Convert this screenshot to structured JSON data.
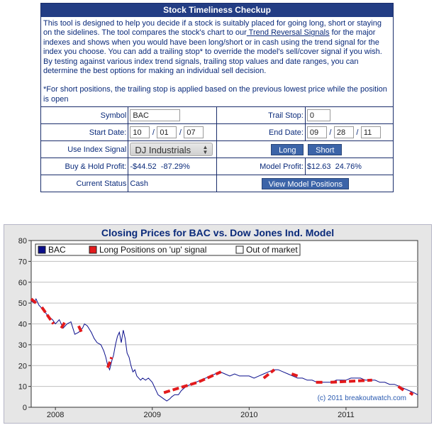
{
  "tool": {
    "title": "Stock Timeliness Checkup",
    "description_before_link": "This tool is designed to help you decide if a stock is suitably placed for going long, short or staying on the sidelines. The tool compares the stock's chart to our",
    "link_text": " Trend Reversal Signals",
    "description_after_link": "for the major indexes and shows when you would have been long/short or in cash using the trend signal for the index you choose. You can add a trailing stop* to override the model's sell/cover signal if you wish. By testing against various index trend signals, trailing stop values and date ranges, you can determine the best options for making an individual sell decision.",
    "footnote": "*For short positions, the trailing stop is applied based on the previous lowest price while the position is open"
  },
  "form": {
    "symbol_label": "Symbol",
    "symbol_value": "BAC",
    "trail_stop_label": "Trail Stop:",
    "trail_stop_value": "0",
    "start_date_label": "Start Date:",
    "start_month": "10",
    "start_day": "01",
    "start_year": "07",
    "end_date_label": "End Date:",
    "end_month": "09",
    "end_day": "28",
    "end_year": "11",
    "date_sep": "/",
    "index_label": "Use Index Signal",
    "index_value": "DJ Industrials",
    "long_button": "Long",
    "short_button": "Short",
    "bh_label": "Buy & Hold Profit:",
    "bh_value": "-$44.52",
    "bh_pct": "-87.29%",
    "model_label": "Model Profit:",
    "model_value": "$12.63",
    "model_pct": "24.76%",
    "status_label": "Current Status",
    "status_value": "Cash",
    "view_button": "View Model Positions"
  },
  "colors": {
    "header_bg": "#233d84",
    "text": "#0a2a7a",
    "price_line": "#0b0f8c",
    "long_line": "#e31a1c",
    "button_bg": "#3c64a8"
  },
  "chart_data": {
    "type": "line",
    "title": "Closing Prices for BAC vs. Dow Jones Ind. Model",
    "credit": "(c) 2011 breakoutwatch.com",
    "ylim": [
      0,
      80
    ],
    "yticks": [
      0,
      10,
      20,
      30,
      40,
      50,
      60,
      70,
      80
    ],
    "xlim": [
      2007.75,
      2011.74
    ],
    "xticks": [
      {
        "label": "2008",
        "x": 2008.0
      },
      {
        "label": "2009",
        "x": 2009.0
      },
      {
        "label": "2010",
        "x": 2010.0
      },
      {
        "label": "2011",
        "x": 2011.0
      }
    ],
    "grid": "horizontal",
    "legend": [
      {
        "label": "BAC",
        "swatch": "price"
      },
      {
        "label": "Long Positions on 'up' signal",
        "swatch": "long"
      },
      {
        "label": "Out of market",
        "swatch": "out"
      }
    ],
    "series": [
      {
        "name": "BAC",
        "x": [
          2007.75,
          2007.78,
          2007.8,
          2007.83,
          2007.87,
          2007.92,
          2007.97,
          2008.0,
          2008.04,
          2008.08,
          2008.12,
          2008.16,
          2008.2,
          2008.24,
          2008.28,
          2008.3,
          2008.33,
          2008.37,
          2008.4,
          2008.43,
          2008.47,
          2008.5,
          2008.52,
          2008.54,
          2008.56,
          2008.58,
          2008.6,
          2008.62,
          2008.64,
          2008.66,
          2008.68,
          2008.7,
          2008.72,
          2008.74,
          2008.76,
          2008.78,
          2008.8,
          2008.82,
          2008.84,
          2008.86,
          2008.88,
          2008.9,
          2008.93,
          2008.96,
          2009.0,
          2009.03,
          2009.06,
          2009.09,
          2009.12,
          2009.15,
          2009.18,
          2009.2,
          2009.23,
          2009.27,
          2009.3,
          2009.35,
          2009.4,
          2009.45,
          2009.5,
          2009.55,
          2009.6,
          2009.65,
          2009.7,
          2009.75,
          2009.8,
          2009.85,
          2009.9,
          2009.95,
          2010.0,
          2010.05,
          2010.1,
          2010.15,
          2010.2,
          2010.25,
          2010.3,
          2010.35,
          2010.4,
          2010.45,
          2010.5,
          2010.55,
          2010.6,
          2010.65,
          2010.7,
          2010.75,
          2010.8,
          2010.85,
          2010.9,
          2010.95,
          2011.0,
          2011.05,
          2011.1,
          2011.15,
          2011.2,
          2011.25,
          2011.3,
          2011.35,
          2011.4,
          2011.45,
          2011.5,
          2011.55,
          2011.6,
          2011.65,
          2011.7,
          2011.74
        ],
        "y": [
          51,
          50,
          52,
          49,
          47,
          44,
          42,
          40,
          42,
          38,
          40,
          41,
          35,
          36,
          38,
          40,
          39,
          36,
          33,
          31,
          30,
          27,
          24,
          20,
          18,
          22,
          25,
          30,
          34,
          36,
          31,
          37,
          33,
          26,
          24,
          20,
          17,
          18,
          15,
          14,
          13,
          14,
          13,
          14,
          12,
          9,
          6,
          5,
          4,
          3,
          4,
          5,
          6,
          6,
          8,
          10,
          11,
          12,
          13,
          14,
          15,
          16,
          17,
          16,
          15,
          16,
          15,
          15,
          15,
          14,
          15,
          16,
          17,
          18,
          18,
          17,
          16,
          15,
          14,
          14,
          13,
          13,
          12,
          12,
          12,
          12,
          13,
          13,
          13,
          14,
          14,
          14,
          13,
          13,
          13,
          12,
          12,
          11,
          11,
          10,
          9,
          8,
          7,
          6
        ]
      },
      {
        "name": "Long Positions on 'up' signal",
        "segments": [
          [
            [
              2007.75,
              52
            ],
            [
              2007.8,
              50
            ]
          ],
          [
            [
              2007.86,
              48
            ],
            [
              2007.98,
              40
            ]
          ],
          [
            [
              2008.06,
              38
            ],
            [
              2008.1,
              41
            ]
          ],
          [
            [
              2008.24,
              39
            ],
            [
              2008.27,
              36
            ]
          ],
          [
            [
              2008.54,
              19
            ],
            [
              2008.58,
              24
            ]
          ],
          [
            [
              2009.12,
              7
            ],
            [
              2009.47,
              12
            ],
            [
              2009.71,
              17
            ]
          ],
          [
            [
              2010.15,
              14
            ],
            [
              2010.26,
              18
            ]
          ],
          [
            [
              2010.44,
              16
            ],
            [
              2010.5,
              15
            ]
          ],
          [
            [
              2010.69,
              12
            ],
            [
              2010.76,
              12
            ]
          ],
          [
            [
              2010.84,
              12
            ],
            [
              2011.27,
              13
            ]
          ],
          [
            [
              2011.54,
              10
            ],
            [
              2011.6,
              8
            ]
          ],
          [
            [
              2011.66,
              7
            ],
            [
              2011.69,
              6
            ]
          ]
        ]
      }
    ]
  }
}
